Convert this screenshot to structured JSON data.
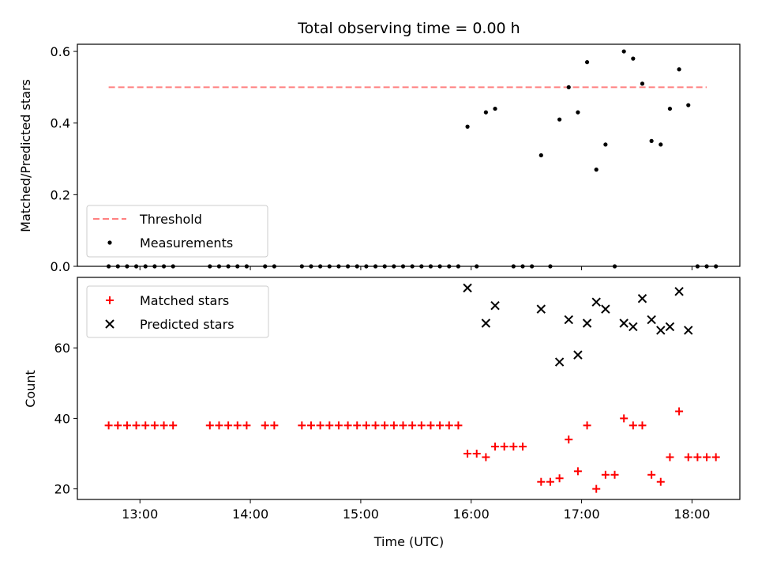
{
  "figure": {
    "title": "Total observing time = 0.00 h",
    "xlabel": "Time (UTC)",
    "x_tick_labels": [
      "13:00",
      "14:00",
      "15:00",
      "16:00",
      "17:00",
      "18:00"
    ]
  },
  "colors": {
    "threshold": "#ff8080",
    "measurements": "#000000",
    "matched": "#ff0000",
    "predicted": "#000000"
  },
  "chart_data": [
    {
      "type": "scatter",
      "panel": "top",
      "ylabel": "Matched/Predicted stars",
      "xlim": [
        "12:26",
        "18:26"
      ],
      "ylim": [
        0,
        0.62
      ],
      "y_ticks": [
        "0.0",
        "0.2",
        "0.4",
        "0.6"
      ],
      "legend_position": "lower-left",
      "threshold": {
        "name": "Threshold",
        "value": 0.5,
        "x_range": [
          "12:43",
          "18:08"
        ]
      },
      "series": [
        {
          "name": "Measurements",
          "points": [
            [
              "12:43",
              0
            ],
            [
              "12:48",
              0
            ],
            [
              "12:53",
              0
            ],
            [
              "12:58",
              0
            ],
            [
              "13:03",
              0
            ],
            [
              "13:08",
              0
            ],
            [
              "13:13",
              0
            ],
            [
              "13:18",
              0
            ],
            [
              "13:38",
              0
            ],
            [
              "13:43",
              0
            ],
            [
              "13:48",
              0
            ],
            [
              "13:53",
              0
            ],
            [
              "13:58",
              0
            ],
            [
              "14:08",
              0
            ],
            [
              "14:13",
              0
            ],
            [
              "14:28",
              0
            ],
            [
              "14:33",
              0
            ],
            [
              "14:38",
              0
            ],
            [
              "14:43",
              0
            ],
            [
              "14:48",
              0
            ],
            [
              "14:53",
              0
            ],
            [
              "14:58",
              0
            ],
            [
              "15:03",
              0
            ],
            [
              "15:08",
              0
            ],
            [
              "15:13",
              0
            ],
            [
              "15:18",
              0
            ],
            [
              "15:23",
              0
            ],
            [
              "15:28",
              0
            ],
            [
              "15:33",
              0
            ],
            [
              "15:38",
              0
            ],
            [
              "15:43",
              0
            ],
            [
              "15:48",
              0
            ],
            [
              "15:53",
              0
            ],
            [
              "15:58",
              0.39
            ],
            [
              "16:03",
              0
            ],
            [
              "16:08",
              0.43
            ],
            [
              "16:13",
              0.44
            ],
            [
              "16:23",
              0
            ],
            [
              "16:28",
              0
            ],
            [
              "16:33",
              0
            ],
            [
              "16:38",
              0.31
            ],
            [
              "16:43",
              0
            ],
            [
              "16:48",
              0.41
            ],
            [
              "16:53",
              0.5
            ],
            [
              "16:58",
              0.43
            ],
            [
              "17:03",
              0.57
            ],
            [
              "17:08",
              0.27
            ],
            [
              "17:13",
              0.34
            ],
            [
              "17:18",
              0
            ],
            [
              "17:23",
              0.6
            ],
            [
              "17:28",
              0.58
            ],
            [
              "17:33",
              0.51
            ],
            [
              "17:38",
              0.35
            ],
            [
              "17:43",
              0.34
            ],
            [
              "17:48",
              0.44
            ],
            [
              "17:53",
              0.55
            ],
            [
              "17:58",
              0.45
            ],
            [
              "18:03",
              0
            ],
            [
              "18:08",
              0
            ],
            [
              "18:13",
              0
            ]
          ]
        }
      ]
    },
    {
      "type": "scatter",
      "panel": "bottom",
      "ylabel": "Count",
      "xlim": [
        "12:26",
        "18:26"
      ],
      "ylim": [
        17,
        80
      ],
      "y_ticks": [
        "20",
        "40",
        "60"
      ],
      "legend_position": "upper-left",
      "series": [
        {
          "name": "Matched stars",
          "marker": "plus",
          "points": [
            [
              "12:43",
              38
            ],
            [
              "12:48",
              38
            ],
            [
              "12:53",
              38
            ],
            [
              "12:58",
              38
            ],
            [
              "13:03",
              38
            ],
            [
              "13:08",
              38
            ],
            [
              "13:13",
              38
            ],
            [
              "13:18",
              38
            ],
            [
              "13:38",
              38
            ],
            [
              "13:43",
              38
            ],
            [
              "13:48",
              38
            ],
            [
              "13:53",
              38
            ],
            [
              "13:58",
              38
            ],
            [
              "14:08",
              38
            ],
            [
              "14:13",
              38
            ],
            [
              "14:28",
              38
            ],
            [
              "14:33",
              38
            ],
            [
              "14:38",
              38
            ],
            [
              "14:43",
              38
            ],
            [
              "14:48",
              38
            ],
            [
              "14:53",
              38
            ],
            [
              "14:58",
              38
            ],
            [
              "15:03",
              38
            ],
            [
              "15:08",
              38
            ],
            [
              "15:13",
              38
            ],
            [
              "15:18",
              38
            ],
            [
              "15:23",
              38
            ],
            [
              "15:28",
              38
            ],
            [
              "15:33",
              38
            ],
            [
              "15:38",
              38
            ],
            [
              "15:43",
              38
            ],
            [
              "15:48",
              38
            ],
            [
              "15:53",
              38
            ],
            [
              "15:58",
              30
            ],
            [
              "16:03",
              30
            ],
            [
              "16:08",
              29
            ],
            [
              "16:13",
              32
            ],
            [
              "16:18",
              32
            ],
            [
              "16:23",
              32
            ],
            [
              "16:28",
              32
            ],
            [
              "16:38",
              22
            ],
            [
              "16:43",
              22
            ],
            [
              "16:48",
              23
            ],
            [
              "16:53",
              34
            ],
            [
              "16:58",
              25
            ],
            [
              "17:03",
              38
            ],
            [
              "17:08",
              20
            ],
            [
              "17:13",
              24
            ],
            [
              "17:18",
              24
            ],
            [
              "17:23",
              40
            ],
            [
              "17:28",
              38
            ],
            [
              "17:33",
              38
            ],
            [
              "17:38",
              24
            ],
            [
              "17:43",
              22
            ],
            [
              "17:48",
              29
            ],
            [
              "17:53",
              42
            ],
            [
              "17:58",
              29
            ],
            [
              "18:03",
              29
            ],
            [
              "18:08",
              29
            ],
            [
              "18:13",
              29
            ]
          ]
        },
        {
          "name": "Predicted stars",
          "marker": "x",
          "points": [
            [
              "15:58",
              77
            ],
            [
              "16:08",
              67
            ],
            [
              "16:13",
              72
            ],
            [
              "16:38",
              71
            ],
            [
              "16:48",
              56
            ],
            [
              "16:53",
              68
            ],
            [
              "16:58",
              58
            ],
            [
              "17:03",
              67
            ],
            [
              "17:08",
              73
            ],
            [
              "17:13",
              71
            ],
            [
              "17:23",
              67
            ],
            [
              "17:28",
              66
            ],
            [
              "17:33",
              74
            ],
            [
              "17:38",
              68
            ],
            [
              "17:43",
              65
            ],
            [
              "17:48",
              66
            ],
            [
              "17:53",
              76
            ],
            [
              "17:58",
              65
            ]
          ]
        }
      ]
    }
  ]
}
